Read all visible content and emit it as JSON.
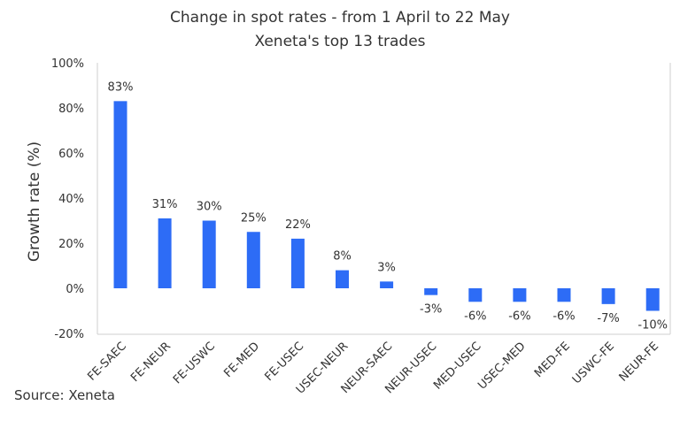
{
  "chart_data": {
    "type": "bar",
    "title": "Change in spot rates - from 1 April to 22 May",
    "subtitle": "Xeneta's top 13 trades",
    "ylabel": "Growth rate (%)",
    "xlabel": "",
    "ylim": [
      -20,
      100
    ],
    "yticks": [
      "100%",
      "80%",
      "60%",
      "40%",
      "20%",
      "0%",
      "-20%"
    ],
    "ytick_values": [
      100,
      80,
      60,
      40,
      20,
      0,
      -20
    ],
    "categories": [
      "FE-SAEC",
      "FE-NEUR",
      "FE-USWC",
      "FE-MED",
      "FE-USEC",
      "USEC-NEUR",
      "NEUR-SAEC",
      "NEUR-USEC",
      "MED-USEC",
      "USEC-MED",
      "MED-FE",
      "USWC-FE",
      "NEUR-FE"
    ],
    "values": [
      83,
      31,
      30,
      25,
      22,
      8,
      3,
      -3,
      -6,
      -6,
      -6,
      -7,
      -10
    ],
    "data_labels": [
      "83%",
      "31%",
      "30%",
      "25%",
      "22%",
      "8%",
      "3%",
      "-3%",
      "-6%",
      "-6%",
      "-6%",
      "-7%",
      "-10%"
    ],
    "bar_color": "#2d6cf6",
    "grid": false
  },
  "source": "Source: Xeneta"
}
